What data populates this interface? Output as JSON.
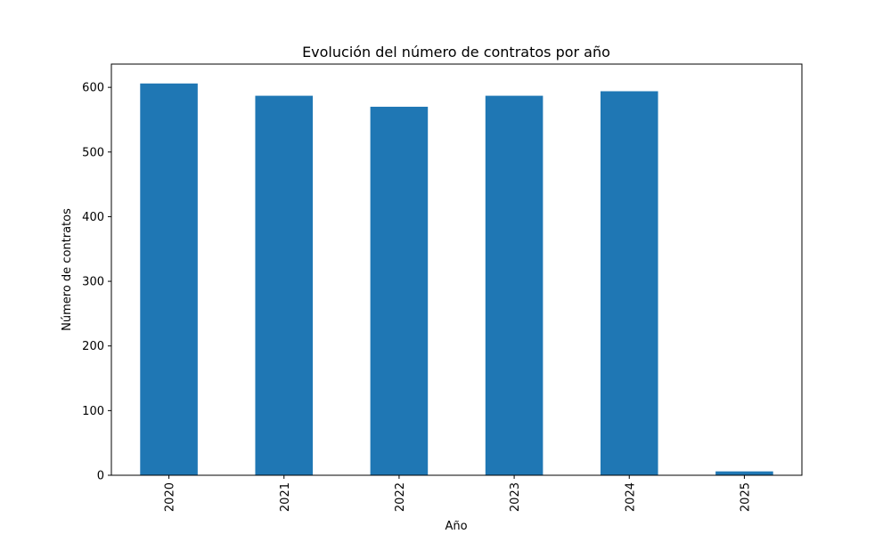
{
  "chart_data": {
    "type": "bar",
    "title": "Evolución del número de contratos por año",
    "xlabel": "Año",
    "ylabel": "Número de contratos",
    "categories": [
      "2020",
      "2021",
      "2022",
      "2023",
      "2024",
      "2025"
    ],
    "values": [
      606,
      587,
      570,
      587,
      594,
      6
    ],
    "ylim": [
      0,
      636
    ],
    "yticks": [
      0,
      100,
      200,
      300,
      400,
      500,
      600
    ],
    "ytick_labels": [
      "0",
      "100",
      "200",
      "300",
      "400",
      "500",
      "600"
    ],
    "bar_color": "#1f77b4",
    "grid": false,
    "legend": "none",
    "xtick_rotation": "vertical"
  }
}
